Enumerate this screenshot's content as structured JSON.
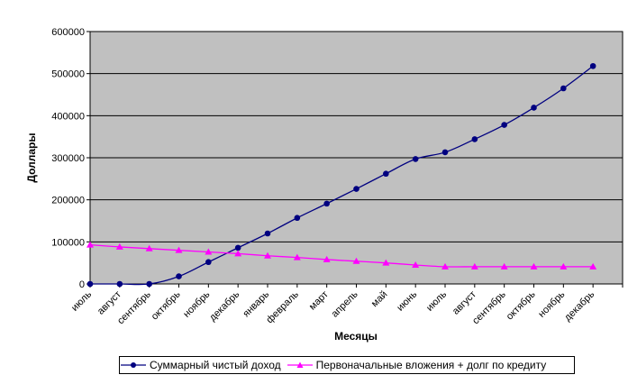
{
  "chart_data": {
    "type": "line",
    "title": "",
    "xlabel": "Месяцы",
    "ylabel": "Доллары",
    "ylim": [
      0,
      600000
    ],
    "yticks": [
      0,
      100000,
      200000,
      300000,
      400000,
      500000,
      600000
    ],
    "grid": "horizontal",
    "legend_position": "bottom",
    "plot_background": "#c0c0c0",
    "categories": [
      "июль",
      "август",
      "сентябрь",
      "октябрь",
      "ноябрь",
      "декабрь",
      "январь",
      "февраль",
      "март",
      "апрель",
      "май",
      "июнь",
      "июль",
      "август",
      "сентябрь",
      "октябрь",
      "ноябрь",
      "декабрь"
    ],
    "series": [
      {
        "name": "Суммарный чистый доход",
        "color": "#000080",
        "marker": "circle",
        "values": [
          0,
          0,
          0,
          18000,
          52000,
          86000,
          120000,
          157000,
          191000,
          226000,
          262000,
          297000,
          313000,
          344000,
          378000,
          419000,
          465000,
          518000
        ]
      },
      {
        "name": "Первоначальные вложения + долг по кредиту",
        "color": "#ff00ff",
        "marker": "triangle",
        "values": [
          93000,
          88000,
          84000,
          80000,
          76000,
          72000,
          67000,
          63000,
          58000,
          54000,
          50000,
          45000,
          41000,
          41000,
          41000,
          41000,
          41000,
          41000
        ]
      }
    ]
  }
}
